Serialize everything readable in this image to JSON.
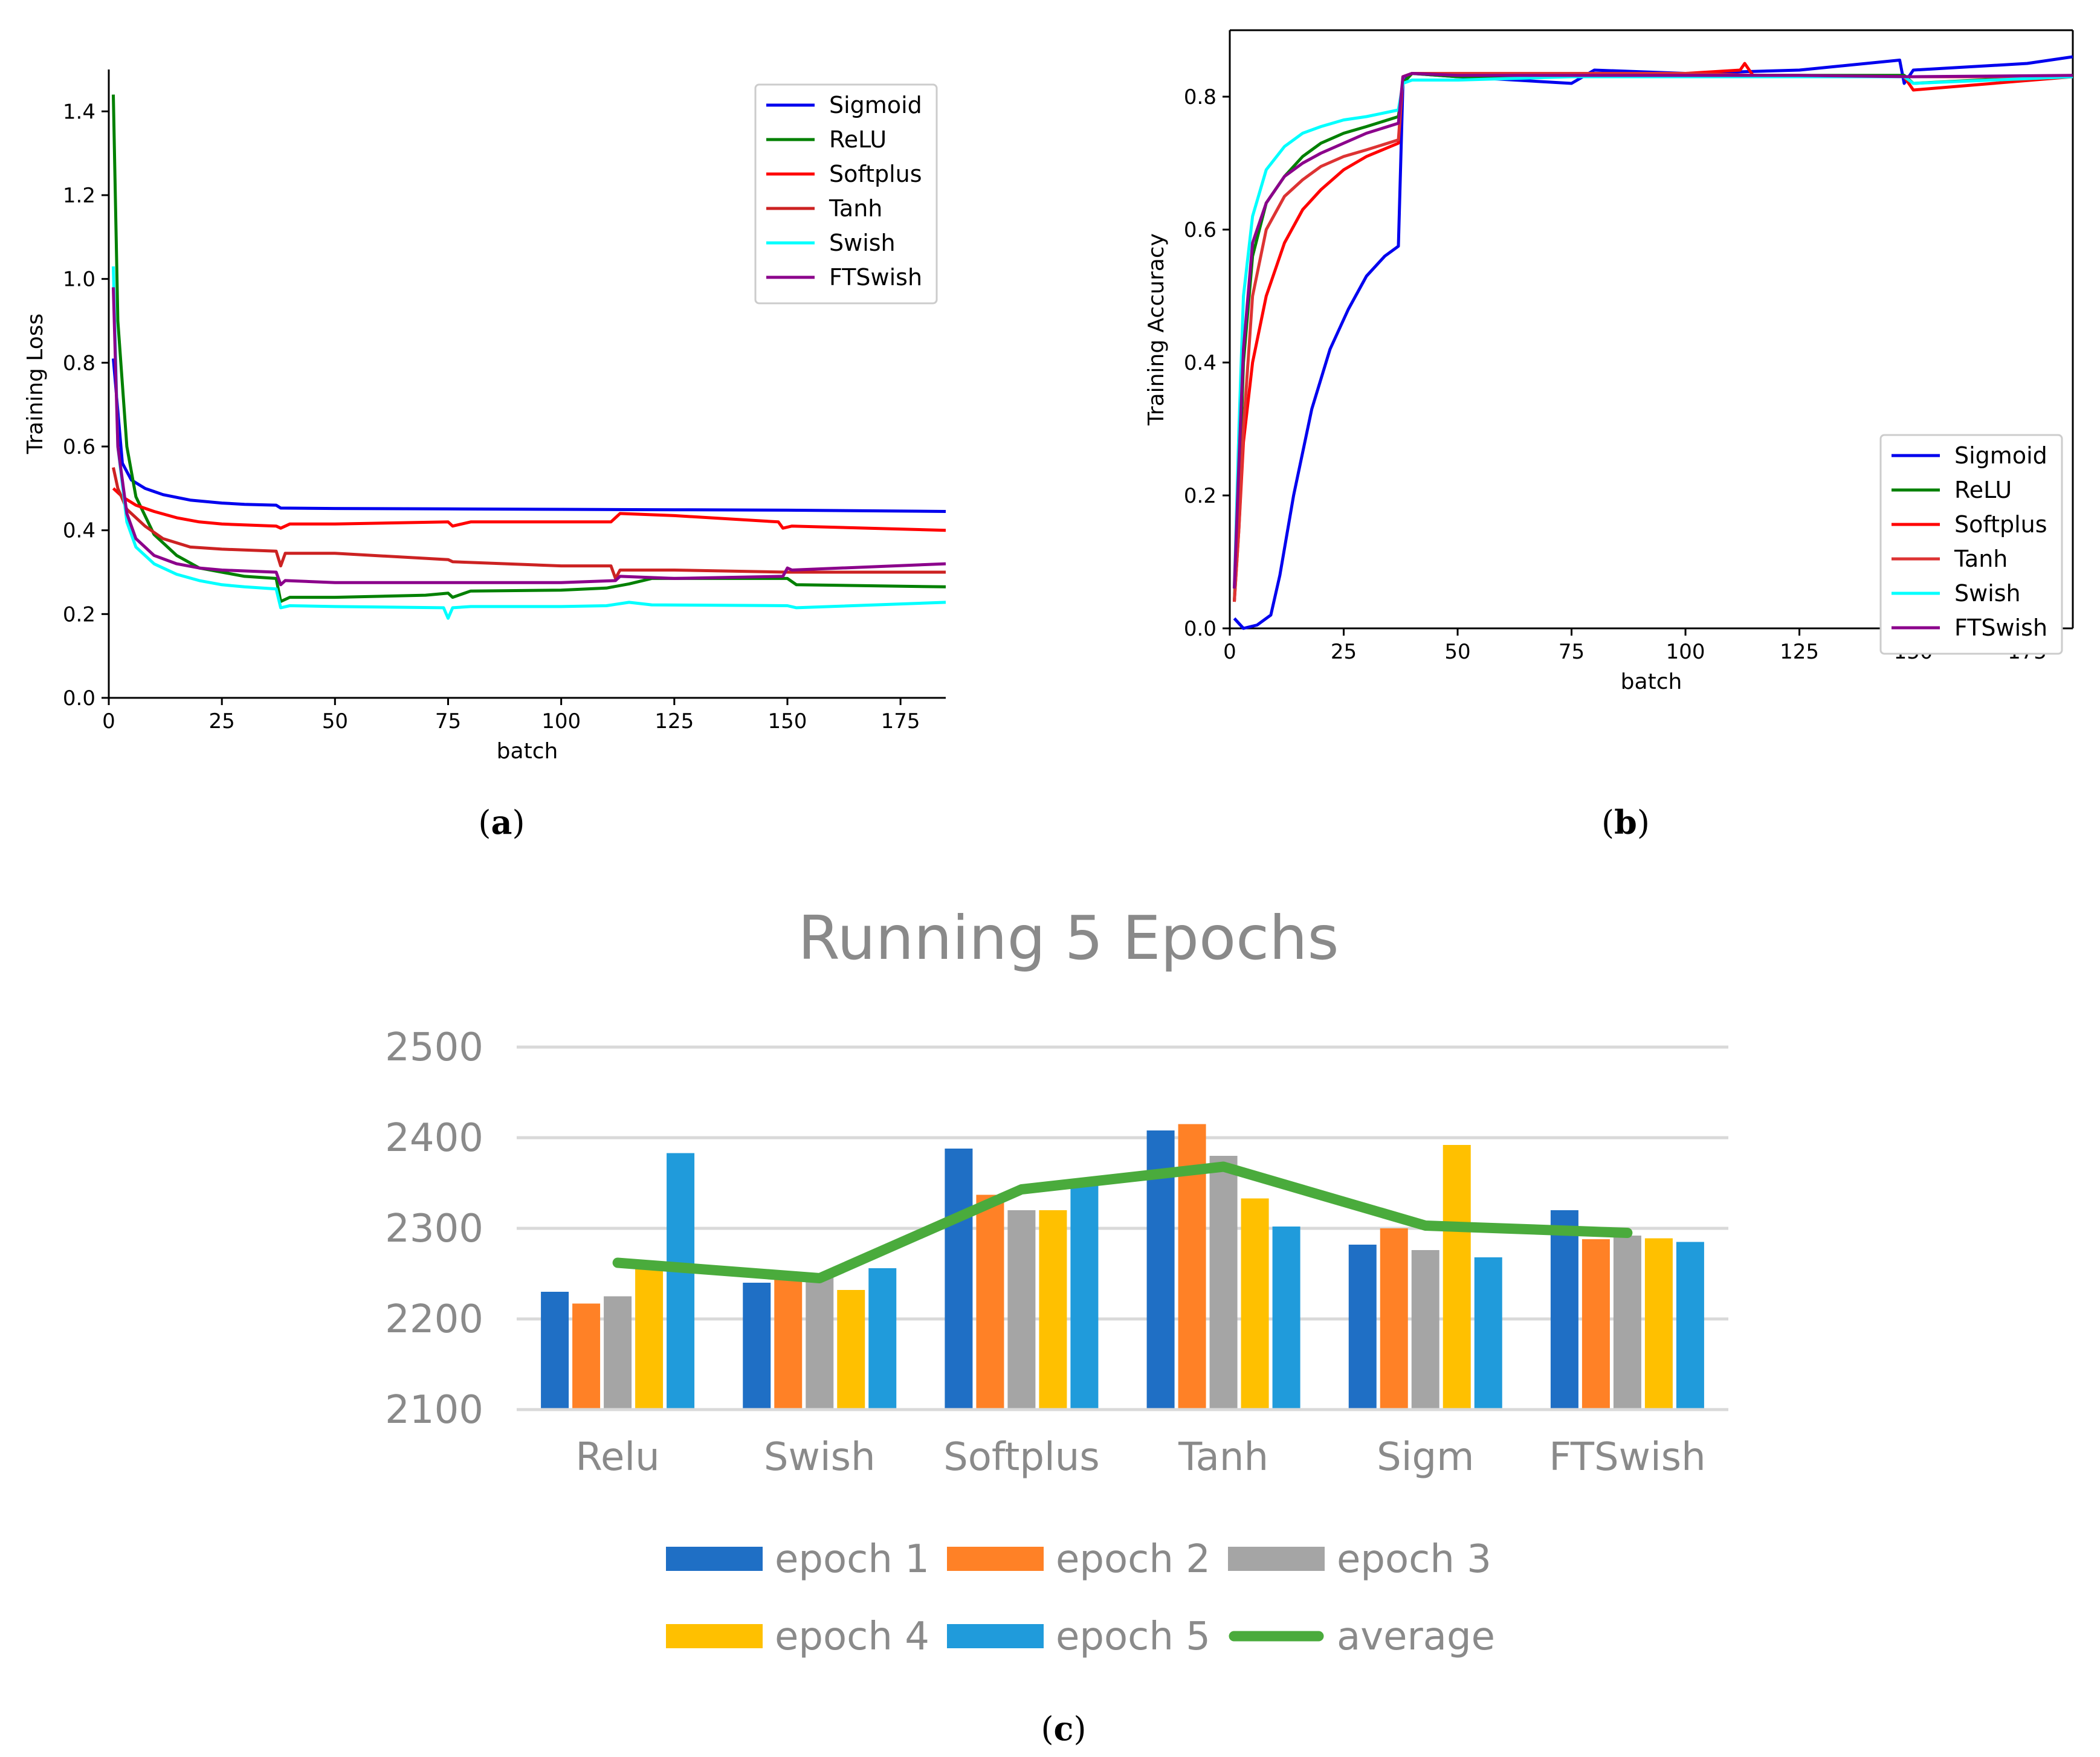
{
  "chart_data": [
    {
      "id": "a",
      "type": "line",
      "caption": "a",
      "xlabel": "batch",
      "ylabel": "Training Loss",
      "xlim": [
        0,
        185
      ],
      "ylim": [
        0,
        1.5
      ],
      "xticks": [
        0,
        25,
        50,
        75,
        100,
        125,
        150,
        175
      ],
      "yticks": [
        0.0,
        0.2,
        0.4,
        0.6,
        0.8,
        1.0,
        1.2,
        1.4
      ],
      "ytick_labels": [
        "0.0",
        "0.2",
        "0.4",
        "0.6",
        "0.8",
        "1.0",
        "1.2",
        "1.4"
      ],
      "legend_position": "top-right",
      "series": [
        {
          "name": "Sigmoid",
          "color": "#0000ee",
          "x": [
            1,
            3,
            5,
            8,
            12,
            18,
            25,
            30,
            37,
            38,
            50,
            75,
            100,
            125,
            150,
            185
          ],
          "y": [
            0.81,
            0.56,
            0.52,
            0.5,
            0.485,
            0.472,
            0.465,
            0.462,
            0.46,
            0.453,
            0.452,
            0.451,
            0.45,
            0.449,
            0.448,
            0.445
          ]
        },
        {
          "name": "ReLU",
          "color": "#008000",
          "x": [
            1,
            2,
            4,
            6,
            10,
            15,
            20,
            25,
            30,
            37,
            38,
            40,
            50,
            70,
            75,
            76,
            80,
            100,
            110,
            115,
            120,
            150,
            152,
            185
          ],
          "y": [
            1.44,
            0.9,
            0.6,
            0.48,
            0.39,
            0.34,
            0.31,
            0.3,
            0.29,
            0.285,
            0.23,
            0.24,
            0.24,
            0.245,
            0.25,
            0.24,
            0.255,
            0.257,
            0.262,
            0.272,
            0.285,
            0.285,
            0.27,
            0.265
          ]
        },
        {
          "name": "Softplus",
          "color": "#ff0000",
          "x": [
            1,
            3,
            6,
            10,
            15,
            20,
            25,
            37,
            38,
            40,
            50,
            75,
            76,
            80,
            100,
            111,
            113,
            125,
            148,
            149,
            151,
            185
          ],
          "y": [
            0.5,
            0.48,
            0.46,
            0.445,
            0.43,
            0.42,
            0.415,
            0.41,
            0.405,
            0.415,
            0.415,
            0.42,
            0.41,
            0.42,
            0.42,
            0.42,
            0.44,
            0.435,
            0.42,
            0.405,
            0.41,
            0.4
          ]
        },
        {
          "name": "Tanh",
          "color": "#cc2222",
          "x": [
            1,
            2,
            4,
            8,
            12,
            18,
            25,
            37,
            38,
            39,
            50,
            75,
            76,
            100,
            111,
            112,
            113,
            125,
            150,
            185
          ],
          "y": [
            0.55,
            0.5,
            0.45,
            0.41,
            0.38,
            0.36,
            0.355,
            0.35,
            0.315,
            0.345,
            0.345,
            0.33,
            0.325,
            0.315,
            0.315,
            0.285,
            0.305,
            0.305,
            0.3,
            0.3
          ]
        },
        {
          "name": "Swish",
          "color": "#00ffff",
          "x": [
            1,
            2,
            4,
            6,
            10,
            15,
            20,
            25,
            30,
            37,
            38,
            40,
            50,
            74,
            75,
            76,
            80,
            100,
            110,
            115,
            120,
            150,
            152,
            185
          ],
          "y": [
            1.03,
            0.6,
            0.42,
            0.36,
            0.32,
            0.295,
            0.28,
            0.27,
            0.265,
            0.26,
            0.215,
            0.22,
            0.218,
            0.215,
            0.19,
            0.215,
            0.218,
            0.218,
            0.22,
            0.228,
            0.222,
            0.22,
            0.215,
            0.228
          ]
        },
        {
          "name": "FTSwish",
          "color": "#8b008b",
          "x": [
            1,
            2,
            4,
            6,
            10,
            15,
            20,
            25,
            37,
            38,
            39,
            50,
            75,
            100,
            112,
            113,
            125,
            149,
            150,
            151,
            185
          ],
          "y": [
            0.98,
            0.6,
            0.44,
            0.38,
            0.34,
            0.32,
            0.31,
            0.305,
            0.3,
            0.27,
            0.28,
            0.275,
            0.275,
            0.275,
            0.28,
            0.29,
            0.285,
            0.29,
            0.31,
            0.305,
            0.32
          ]
        }
      ]
    },
    {
      "id": "b",
      "type": "line",
      "caption": "b",
      "xlabel": "batch",
      "ylabel": "Training Accuracy",
      "xlim": [
        0,
        185
      ],
      "ylim": [
        0,
        0.9
      ],
      "xticks": [
        0,
        25,
        50,
        75,
        100,
        125,
        150,
        175
      ],
      "yticks": [
        0.0,
        0.2,
        0.4,
        0.6,
        0.8
      ],
      "ytick_labels": [
        "0.0",
        "0.2",
        "0.4",
        "0.6",
        "0.8"
      ],
      "legend_position": "bottom-right",
      "series": [
        {
          "name": "Sigmoid",
          "color": "#0000ee",
          "x": [
            1,
            3,
            6,
            9,
            11,
            14,
            18,
            22,
            26,
            30,
            34,
            37,
            38,
            39,
            40,
            50,
            75,
            80,
            100,
            125,
            147,
            148,
            150,
            175,
            185
          ],
          "y": [
            0.015,
            0.0,
            0.005,
            0.02,
            0.08,
            0.2,
            0.33,
            0.42,
            0.48,
            0.53,
            0.56,
            0.575,
            0.82,
            0.83,
            0.835,
            0.83,
            0.82,
            0.84,
            0.835,
            0.84,
            0.855,
            0.82,
            0.84,
            0.85,
            0.86
          ]
        },
        {
          "name": "ReLU",
          "color": "#008000",
          "x": [
            1,
            2,
            3,
            5,
            8,
            12,
            16,
            20,
            25,
            30,
            37,
            38,
            40,
            50,
            75,
            100,
            125,
            148,
            150,
            185
          ],
          "y": [
            0.04,
            0.2,
            0.4,
            0.56,
            0.64,
            0.68,
            0.71,
            0.73,
            0.745,
            0.755,
            0.77,
            0.82,
            0.835,
            0.83,
            0.83,
            0.832,
            0.832,
            0.832,
            0.82,
            0.832
          ]
        },
        {
          "name": "Softplus",
          "color": "#ff0000",
          "x": [
            1,
            2,
            3,
            5,
            8,
            12,
            16,
            20,
            25,
            30,
            37,
            38,
            40,
            50,
            75,
            100,
            112,
            113,
            115,
            125,
            148,
            150,
            185
          ],
          "y": [
            0.04,
            0.15,
            0.28,
            0.4,
            0.5,
            0.58,
            0.63,
            0.66,
            0.69,
            0.71,
            0.73,
            0.83,
            0.835,
            0.835,
            0.835,
            0.835,
            0.84,
            0.85,
            0.83,
            0.83,
            0.83,
            0.81,
            0.83
          ]
        },
        {
          "name": "Tanh",
          "color": "#dd3333",
          "x": [
            1,
            2,
            3,
            5,
            8,
            12,
            16,
            20,
            25,
            30,
            37,
            38,
            40,
            50,
            75,
            100,
            125,
            150,
            185
          ],
          "y": [
            0.04,
            0.15,
            0.3,
            0.5,
            0.6,
            0.65,
            0.675,
            0.695,
            0.71,
            0.72,
            0.735,
            0.83,
            0.835,
            0.835,
            0.835,
            0.835,
            0.83,
            0.83,
            0.83
          ]
        },
        {
          "name": "Swish",
          "color": "#00ffff",
          "x": [
            1,
            2,
            3,
            5,
            8,
            12,
            16,
            20,
            25,
            30,
            37,
            38,
            40,
            50,
            75,
            100,
            125,
            148,
            150,
            185
          ],
          "y": [
            0.06,
            0.3,
            0.5,
            0.62,
            0.69,
            0.725,
            0.745,
            0.755,
            0.765,
            0.77,
            0.78,
            0.82,
            0.825,
            0.825,
            0.83,
            0.83,
            0.83,
            0.83,
            0.82,
            0.83
          ]
        },
        {
          "name": "FTSwish",
          "color": "#8b008b",
          "x": [
            1,
            2,
            3,
            5,
            8,
            12,
            16,
            20,
            25,
            30,
            37,
            38,
            40,
            50,
            75,
            100,
            125,
            150,
            185
          ],
          "y": [
            0.06,
            0.25,
            0.42,
            0.58,
            0.64,
            0.68,
            0.7,
            0.715,
            0.73,
            0.745,
            0.76,
            0.83,
            0.835,
            0.832,
            0.832,
            0.832,
            0.832,
            0.83,
            0.832
          ]
        }
      ]
    },
    {
      "id": "c",
      "type": "bar",
      "caption": "c",
      "title": "Running 5 Epochs",
      "categories": [
        "Relu",
        "Swish",
        "Softplus",
        "Tanh",
        "Sigm",
        "FTSwish"
      ],
      "ylim": [
        2100,
        2500
      ],
      "yticks": [
        2100,
        2200,
        2300,
        2400,
        2500
      ],
      "grid": true,
      "legend_position": "bottom",
      "series": [
        {
          "name": "epoch 1",
          "color": "#1f6fc5",
          "values": [
            2230,
            2240,
            2388,
            2408,
            2282,
            2320
          ]
        },
        {
          "name": "epoch 2",
          "color": "#ff8126",
          "values": [
            2217,
            2250,
            2337,
            2415,
            2300,
            2288
          ]
        },
        {
          "name": "epoch 3",
          "color": "#a5a5a5",
          "values": [
            2225,
            2248,
            2320,
            2380,
            2276,
            2292
          ]
        },
        {
          "name": "epoch 4",
          "color": "#ffc000",
          "values": [
            2262,
            2232,
            2320,
            2333,
            2392,
            2289
          ]
        },
        {
          "name": "epoch 5",
          "color": "#209bdb",
          "values": [
            2383,
            2256,
            2350,
            2302,
            2268,
            2285
          ]
        }
      ],
      "line_series": {
        "name": "average",
        "color": "#4aab3c",
        "values": [
          2262,
          2245,
          2343,
          2368,
          2303,
          2295
        ]
      }
    }
  ]
}
